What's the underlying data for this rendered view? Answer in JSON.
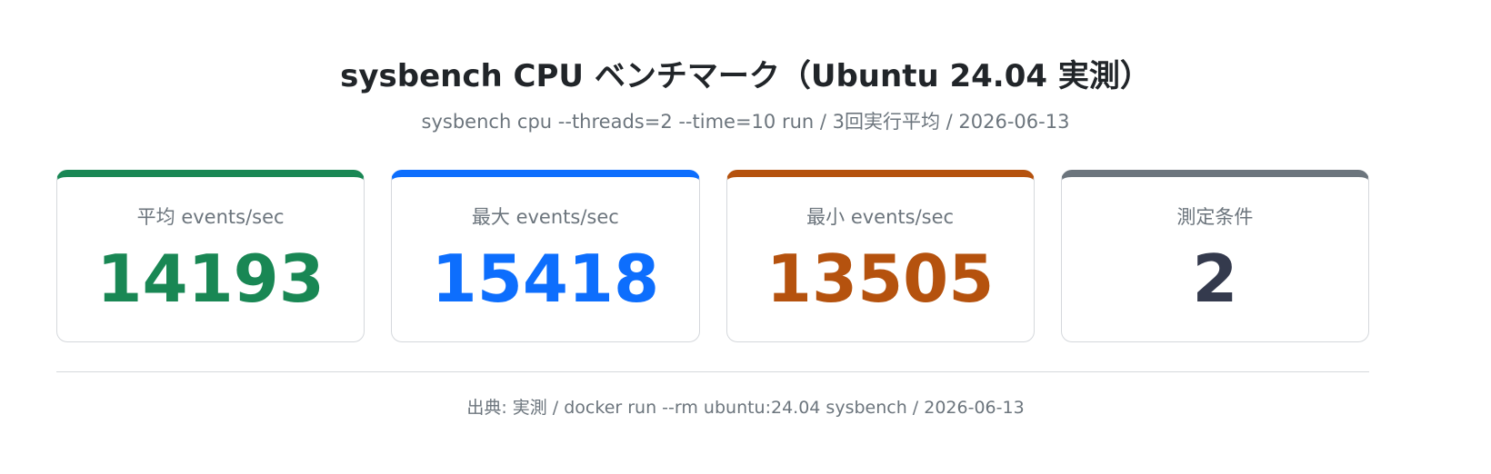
{
  "header": {
    "title": "sysbench CPU ベンチマーク（Ubuntu 24.04 実測）",
    "subtitle": "sysbench cpu --threads=2 --time=10 run / 3回実行平均 / 2026-06-13"
  },
  "cards": [
    {
      "label": "平均 events/sec",
      "value": 14193,
      "color": "#198754"
    },
    {
      "label": "最大 events/sec",
      "value": 15418,
      "color": "#0d6efd"
    },
    {
      "label": "最小 events/sec",
      "value": 13505,
      "color": "#b5520e"
    },
    {
      "label": "測定条件",
      "value": 2,
      "color": "#6c757d",
      "value_color": "#343a4d"
    }
  ],
  "footer": {
    "source": "出典: 実測 / docker run --rm ubuntu:24.04 sysbench / 2026-06-13"
  }
}
